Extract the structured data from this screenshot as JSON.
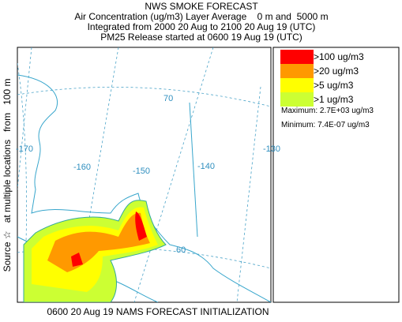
{
  "header": {
    "title": "NWS SMOKE FORECAST",
    "line1": "Air Concentration (ug/m3) Layer Average    0 m and  5000 m",
    "line2": "Integrated from 2000 20 Aug to 2100 20 Aug 19 (UTC)",
    "line3": "PM25 Release started at 0600 19 Aug 19 (UTC)"
  },
  "side_label": "Source ☆   at multiple locations   from   100 m",
  "footer": "0600 20 Aug 19 NAMS FORECAST INITIALIZATION",
  "legend": {
    "items": [
      {
        "label": ">100 ug/m3",
        "color": "#ff0000"
      },
      {
        "label": ">20 ug/m3",
        "color": "#ff9900"
      },
      {
        "label": ">5 ug/m3",
        "color": "#ffff00"
      },
      {
        "label": ">1 ug/m3",
        "color": "#ccff33"
      }
    ],
    "maximum": "Maximum: 2.7E+03 ug/m3",
    "minimum": "Minimum: 7.4E-07 ug/m3"
  },
  "map": {
    "labels": [
      "70",
      "-170",
      "-160",
      "-150",
      "-140",
      "-130",
      "60"
    ]
  }
}
